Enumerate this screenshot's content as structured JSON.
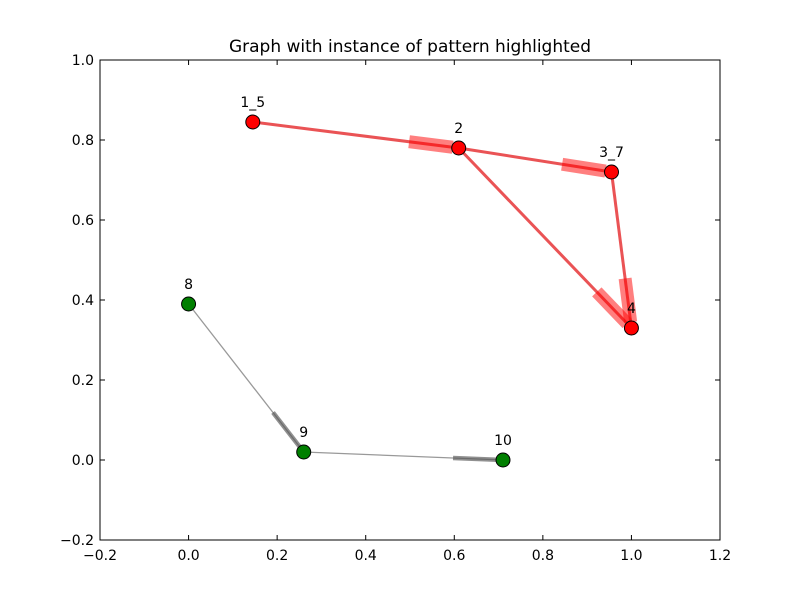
{
  "chart_data": {
    "type": "network",
    "title": "Graph with instance of pattern highlighted",
    "xlabel": "",
    "ylabel": "",
    "xlim": [
      -0.2,
      1.2
    ],
    "ylim": [
      -0.2,
      1.0
    ],
    "grid": false,
    "x_ticks": [
      {
        "value": -0.2,
        "label": "−0.2"
      },
      {
        "value": 0.0,
        "label": "0.0"
      },
      {
        "value": 0.2,
        "label": "0.2"
      },
      {
        "value": 0.4,
        "label": "0.4"
      },
      {
        "value": 0.6,
        "label": "0.6"
      },
      {
        "value": 0.8,
        "label": "0.8"
      },
      {
        "value": 1.0,
        "label": "1.0"
      },
      {
        "value": 1.2,
        "label": "1.2"
      }
    ],
    "y_ticks": [
      {
        "value": -0.2,
        "label": "−0.2"
      },
      {
        "value": 0.0,
        "label": "0.0"
      },
      {
        "value": 0.2,
        "label": "0.2"
      },
      {
        "value": 0.4,
        "label": "0.4"
      },
      {
        "value": 0.6,
        "label": "0.6"
      },
      {
        "value": 0.8,
        "label": "0.8"
      },
      {
        "value": 1.0,
        "label": "1.0"
      }
    ],
    "nodes": [
      {
        "id": "1_5",
        "label": "1_5",
        "x": 0.145,
        "y": 0.845,
        "color": "#ff0000",
        "highlighted": true
      },
      {
        "id": "2",
        "label": "2",
        "x": 0.61,
        "y": 0.78,
        "color": "#ff0000",
        "highlighted": true
      },
      {
        "id": "3_7",
        "label": "3_7",
        "x": 0.955,
        "y": 0.72,
        "color": "#ff0000",
        "highlighted": true
      },
      {
        "id": "4",
        "label": "4",
        "x": 1.0,
        "y": 0.33,
        "color": "#ff0000",
        "highlighted": true
      },
      {
        "id": "8",
        "label": "8",
        "x": 0.0,
        "y": 0.39,
        "color": "#007f00",
        "highlighted": false
      },
      {
        "id": "9",
        "label": "9",
        "x": 0.26,
        "y": 0.02,
        "color": "#007f00",
        "highlighted": false
      },
      {
        "id": "10",
        "label": "10",
        "x": 0.71,
        "y": 0.0,
        "color": "#007f00",
        "highlighted": false
      }
    ],
    "edges": [
      {
        "source": "1_5",
        "target": "2",
        "highlighted": true
      },
      {
        "source": "2",
        "target": "3_7",
        "highlighted": true
      },
      {
        "source": "2",
        "target": "4",
        "highlighted": true
      },
      {
        "source": "3_7",
        "target": "4",
        "highlighted": true
      },
      {
        "source": "8",
        "target": "9",
        "highlighted": false
      },
      {
        "source": "9",
        "target": "10",
        "highlighted": false
      }
    ],
    "colors": {
      "highlight_edge": "#e31a1c",
      "normal_edge": "#999999",
      "highlight_node": "#ff0000",
      "normal_node": "#007f00"
    }
  }
}
